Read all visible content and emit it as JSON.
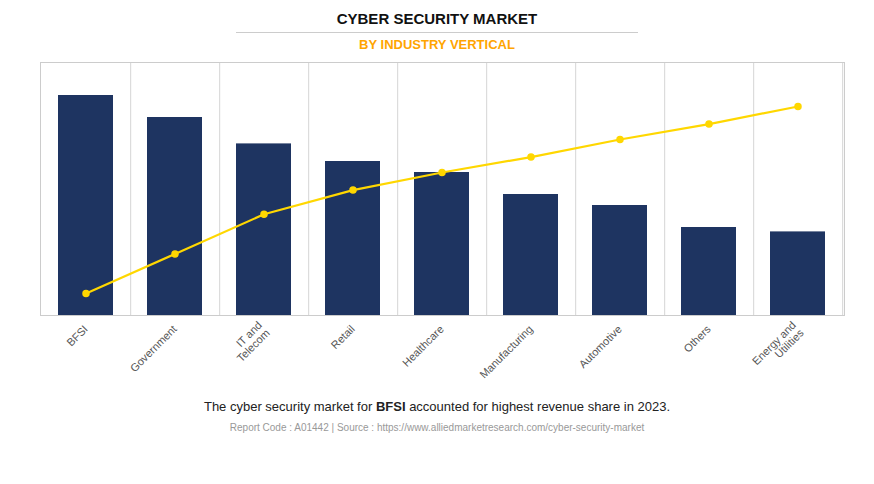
{
  "chart_data": {
    "type": "bar",
    "title": "CYBER SECURITY MARKET",
    "subtitle": "BY INDUSTRY VERTICAL",
    "categories": [
      "BFSI",
      "Government",
      "IT and\nTelecom",
      "Retail",
      "Healthcare",
      "Manufacturing",
      "Automotive",
      "Others",
      "Energy and\nUtilities"
    ],
    "series": [
      {
        "type": "bar",
        "color": "#1e3461",
        "values": [
          100,
          90,
          78,
          70,
          65,
          55,
          50,
          40,
          38
        ]
      },
      {
        "type": "line",
        "color": "#FFD700",
        "marker": "circle",
        "values": [
          10,
          28,
          46,
          57,
          65,
          72,
          80,
          87,
          95
        ]
      }
    ],
    "ylim": [
      0,
      115
    ],
    "grid": true,
    "tick_labels": "x",
    "annotation": [
      "The cyber security market for ",
      "BFSI",
      " accounted for highest revenue share in 2023."
    ],
    "footer": "Report Code : A01442  |  Source : https://www.alliedmarketresearch.com/cyber-security-market"
  }
}
